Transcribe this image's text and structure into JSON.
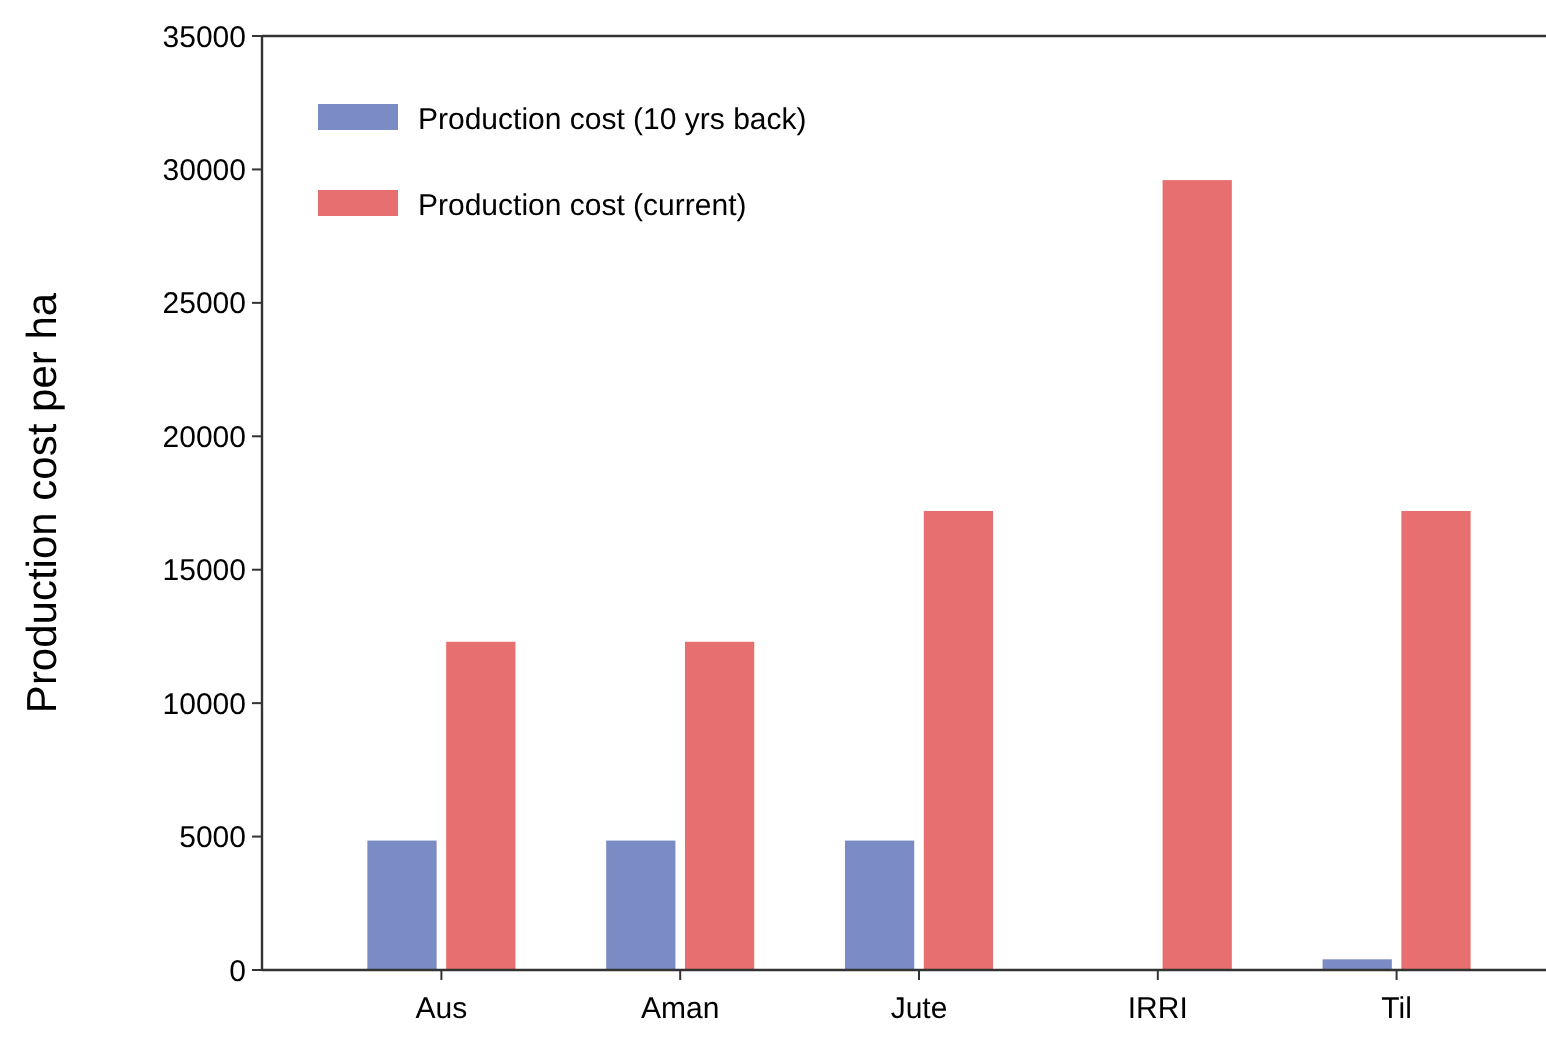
{
  "chart_data": {
    "type": "bar",
    "ylabel": "Production cost per ha",
    "categories": [
      "Aus",
      "Aman",
      "Jute",
      "IRRI",
      "Til"
    ],
    "series": [
      {
        "name": "Production cost (10 yrs back)",
        "color": "#7b8bc4",
        "values": [
          4850,
          4850,
          4850,
          0,
          400
        ]
      },
      {
        "name": "Production cost (current)",
        "color": "#e86f70",
        "values": [
          12300,
          12300,
          17200,
          29600,
          17200
        ]
      }
    ],
    "ylim": [
      0,
      35000
    ],
    "yticks": [
      0,
      5000,
      10000,
      15000,
      20000,
      25000,
      30000,
      35000
    ],
    "grid": false,
    "legend": "top left"
  }
}
